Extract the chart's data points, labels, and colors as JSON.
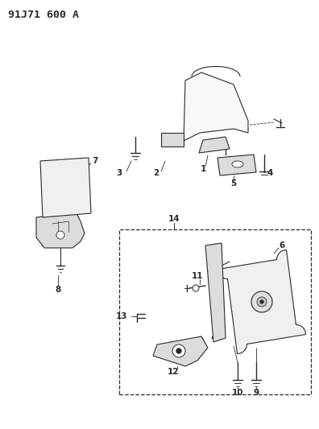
{
  "title": "91J71 600 A",
  "bg_color": "#ffffff",
  "line_color": "#2a2a2a",
  "fill_color": "#f0f0ee",
  "title_fontsize": 9.5,
  "label_fontsize": 7.5,
  "figsize": [
    3.96,
    5.33
  ],
  "dpi": 100
}
